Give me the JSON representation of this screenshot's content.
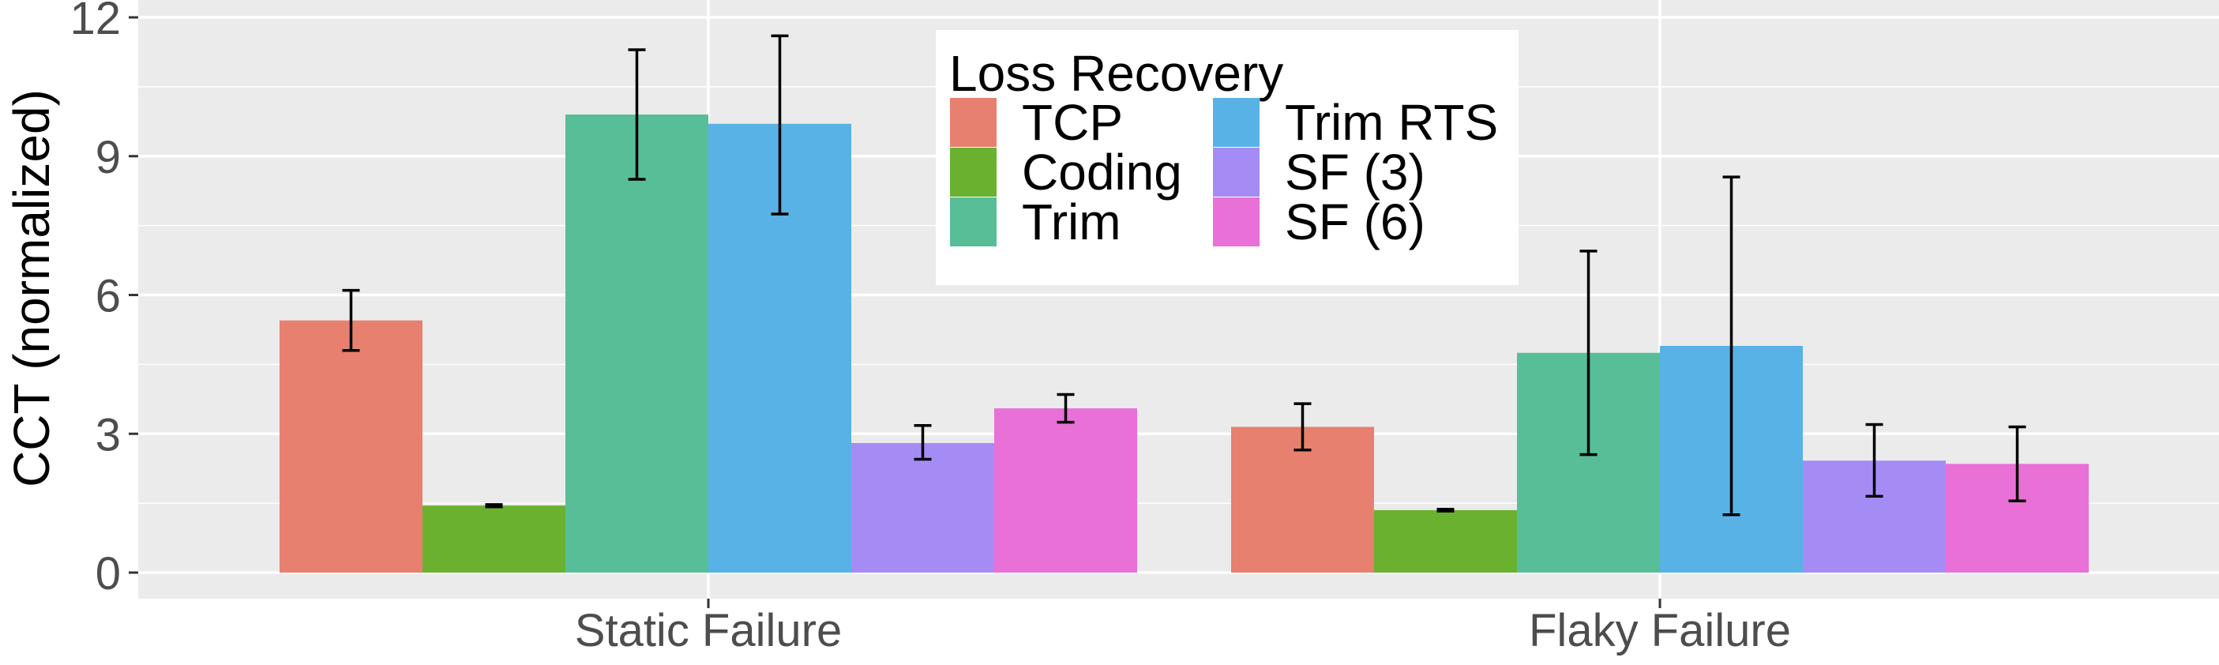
{
  "chart_data": {
    "type": "bar",
    "title": "",
    "xlabel": "",
    "ylabel": "CCT (normalized)",
    "ylim": [
      0,
      12
    ],
    "yticks": [
      0,
      3,
      6,
      9,
      12
    ],
    "grid": true,
    "categories": [
      "Static Failure",
      "Flaky Failure"
    ],
    "legend": {
      "title": "Loss Recovery",
      "position": "top-center",
      "columns": 2
    },
    "series": [
      {
        "name": "TCP",
        "color": "#E7806F",
        "values": [
          5.45,
          3.15
        ],
        "err_low": [
          4.8,
          2.65
        ],
        "err_high": [
          6.1,
          3.65
        ]
      },
      {
        "name": "Coding",
        "color": "#6AB130",
        "values": [
          1.45,
          1.35
        ],
        "err_low": [
          1.42,
          1.33
        ],
        "err_high": [
          1.47,
          1.37
        ]
      },
      {
        "name": "Trim",
        "color": "#57BE98",
        "values": [
          9.9,
          4.75
        ],
        "err_low": [
          8.5,
          2.55
        ],
        "err_high": [
          11.3,
          6.95
        ]
      },
      {
        "name": "Trim RTS",
        "color": "#59B2E5",
        "values": [
          9.7,
          4.9
        ],
        "err_low": [
          7.75,
          1.25
        ],
        "err_high": [
          11.6,
          8.55
        ]
      },
      {
        "name": "SF (3)",
        "color": "#A58CF5",
        "values": [
          2.8,
          2.42
        ],
        "err_low": [
          2.45,
          1.65
        ],
        "err_high": [
          3.18,
          3.2
        ]
      },
      {
        "name": "SF (6)",
        "color": "#E970D6",
        "values": [
          3.55,
          2.35
        ],
        "err_low": [
          3.25,
          1.55
        ],
        "err_high": [
          3.85,
          3.15
        ]
      }
    ]
  }
}
